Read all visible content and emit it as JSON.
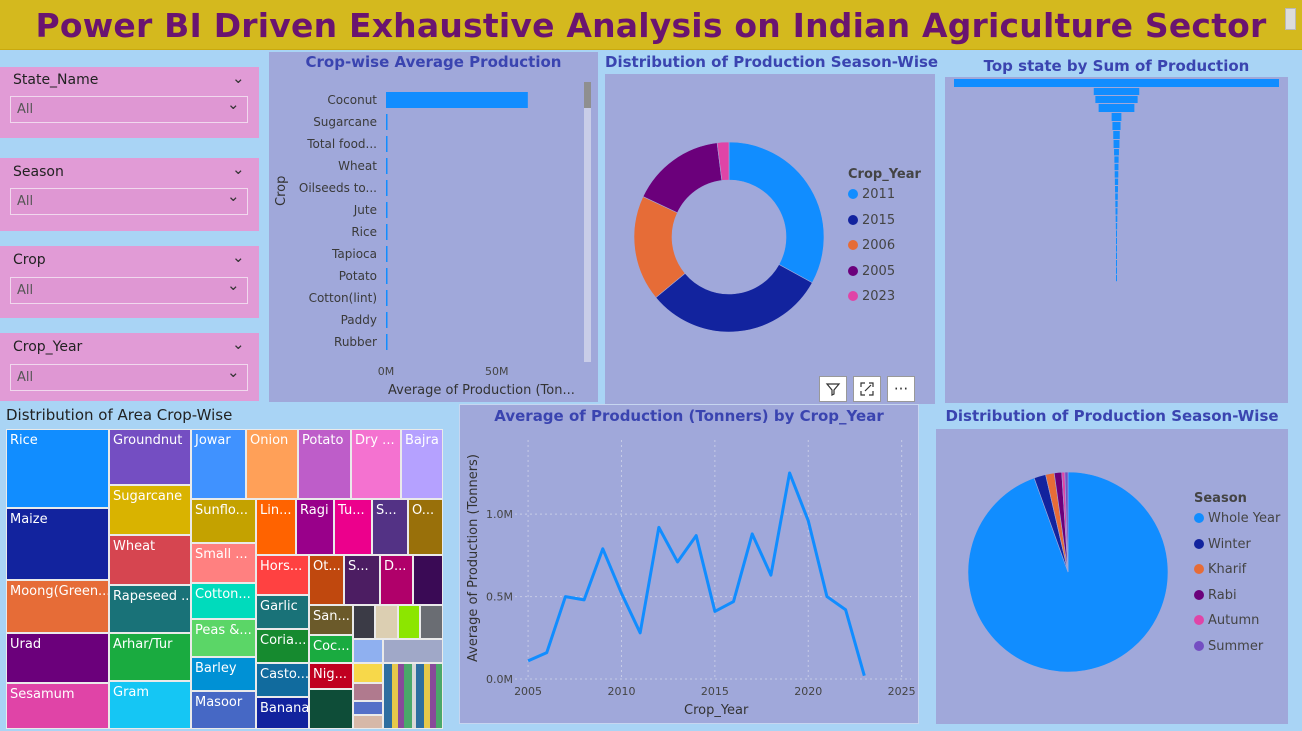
{
  "header": {
    "title": "Power BI Driven Exhaustive Analysis on Indian Agriculture Sector"
  },
  "slicers": [
    {
      "label": "State_Name",
      "value": "All"
    },
    {
      "label": "Season",
      "value": "All"
    },
    {
      "label": "Crop",
      "value": "All"
    },
    {
      "label": "Crop_Year",
      "value": "All"
    }
  ],
  "toolbar": {
    "filter_icon": "filter-icon",
    "focus_icon": "focus-mode-icon",
    "more_label": "···"
  },
  "colors": {
    "banner": "#d4b91e",
    "title": "#6a1470",
    "panel": "#a0a8da",
    "accent": "#118dff"
  },
  "chart_data": [
    {
      "id": "crop_bar",
      "type": "bar",
      "orientation": "horizontal",
      "title": "Crop-wise Average Production",
      "xlabel": "Average of Production (Ton...",
      "ylabel": "Crop",
      "categories": [
        "Coconut",
        "Sugarcane",
        "Total food...",
        "Wheat",
        "Oilseeds to...",
        "Jute",
        "Rice",
        "Tapioca",
        "Potato",
        "Cotton(lint)",
        "Paddy",
        "Rubber"
      ],
      "values": [
        64000000,
        600000,
        300000,
        250000,
        200000,
        150000,
        140000,
        120000,
        110000,
        100000,
        90000,
        80000
      ],
      "xlim": [
        0,
        88000000
      ],
      "xticks": [
        "0M",
        "50M"
      ],
      "xtick_values": [
        0,
        50000000
      ],
      "color": "#118dff"
    },
    {
      "id": "year_donut",
      "type": "pie",
      "donut": true,
      "title": "Distribution of Production Season-Wise",
      "legend_title": "Crop_Year",
      "legend_position": "right",
      "labels": [
        "2011",
        "2015",
        "2006",
        "2005",
        "2023"
      ],
      "values": [
        33,
        31,
        18,
        16,
        2
      ],
      "colors": [
        "#118dff",
        "#12239e",
        "#e66c37",
        "#6b007b",
        "#e044a7"
      ]
    },
    {
      "id": "state_funnel",
      "type": "bar",
      "orientation": "funnel",
      "title": "Top state by Sum of Production",
      "values": [
        100,
        14,
        13,
        11,
        3,
        2.5,
        2,
        1.8,
        1.5,
        1.3,
        1.2,
        1.1,
        1,
        0.9,
        0.8,
        0.7,
        0.6,
        0.5,
        0.4,
        0.3,
        0.25,
        0.2,
        0.15,
        0.1,
        0.08,
        0.06
      ],
      "color": "#118dff"
    },
    {
      "id": "area_treemap",
      "type": "treemap",
      "title": "Distribution of Area Crop-Wise",
      "labels": [
        "Rice",
        "Maize",
        "Moong(Green...",
        "Urad",
        "Sesamum",
        "Groundnut",
        "Sugarcane",
        "Wheat",
        "Rapeseed ...",
        "Arhar/Tur",
        "Gram",
        "Jowar",
        "Onion",
        "Potato",
        "Dry ...",
        "Bajra",
        "Sunflo...",
        "Small ...",
        "Cotton...",
        "Peas &...",
        "Barley",
        "Masoor",
        "Lin...",
        "Ragi",
        "Tu...",
        "S...",
        "O...",
        "Hors...",
        "Ot...",
        "S...",
        "D...",
        "Garlic",
        "Coria...",
        "Casto...",
        "Banana",
        "San...",
        "Coc...",
        "Nig..."
      ]
    },
    {
      "id": "year_line",
      "type": "line",
      "title": "Average of Production (Tonners) by Crop_Year",
      "xlabel": "Crop_Year",
      "ylabel": "Average of Production (Tonners)",
      "x": [
        2005,
        2006,
        2007,
        2008,
        2009,
        2010,
        2011,
        2012,
        2013,
        2014,
        2015,
        2016,
        2017,
        2018,
        2019,
        2020,
        2021,
        2022,
        2023
      ],
      "y": [
        110000,
        160000,
        500000,
        480000,
        790000,
        520000,
        280000,
        920000,
        710000,
        870000,
        410000,
        470000,
        880000,
        630000,
        1250000,
        960000,
        500000,
        420000,
        20000
      ],
      "xlim": [
        2004.3,
        2025.5
      ],
      "ylim": [
        0,
        1450000
      ],
      "xticks": [
        "2005",
        "2010",
        "2015",
        "2020",
        "2025"
      ],
      "xtick_values": [
        2005,
        2010,
        2015,
        2020,
        2025
      ],
      "yticks": [
        "0.0M",
        "0.5M",
        "1.0M"
      ],
      "ytick_values": [
        0,
        500000,
        1000000
      ],
      "color": "#118dff",
      "grid": true
    },
    {
      "id": "season_pie",
      "type": "pie",
      "title": "Distribution of Production Season-Wise",
      "legend_title": "Season",
      "legend_position": "right",
      "labels": [
        "Whole Year",
        "Winter",
        "Kharif",
        "Rabi",
        "Autumn",
        "Summer"
      ],
      "values": [
        94.5,
        1.9,
        1.4,
        1.2,
        0.5,
        0.5
      ],
      "colors": [
        "#118dff",
        "#12239e",
        "#e66c37",
        "#6b007b",
        "#e044a7",
        "#744ec2"
      ]
    }
  ]
}
